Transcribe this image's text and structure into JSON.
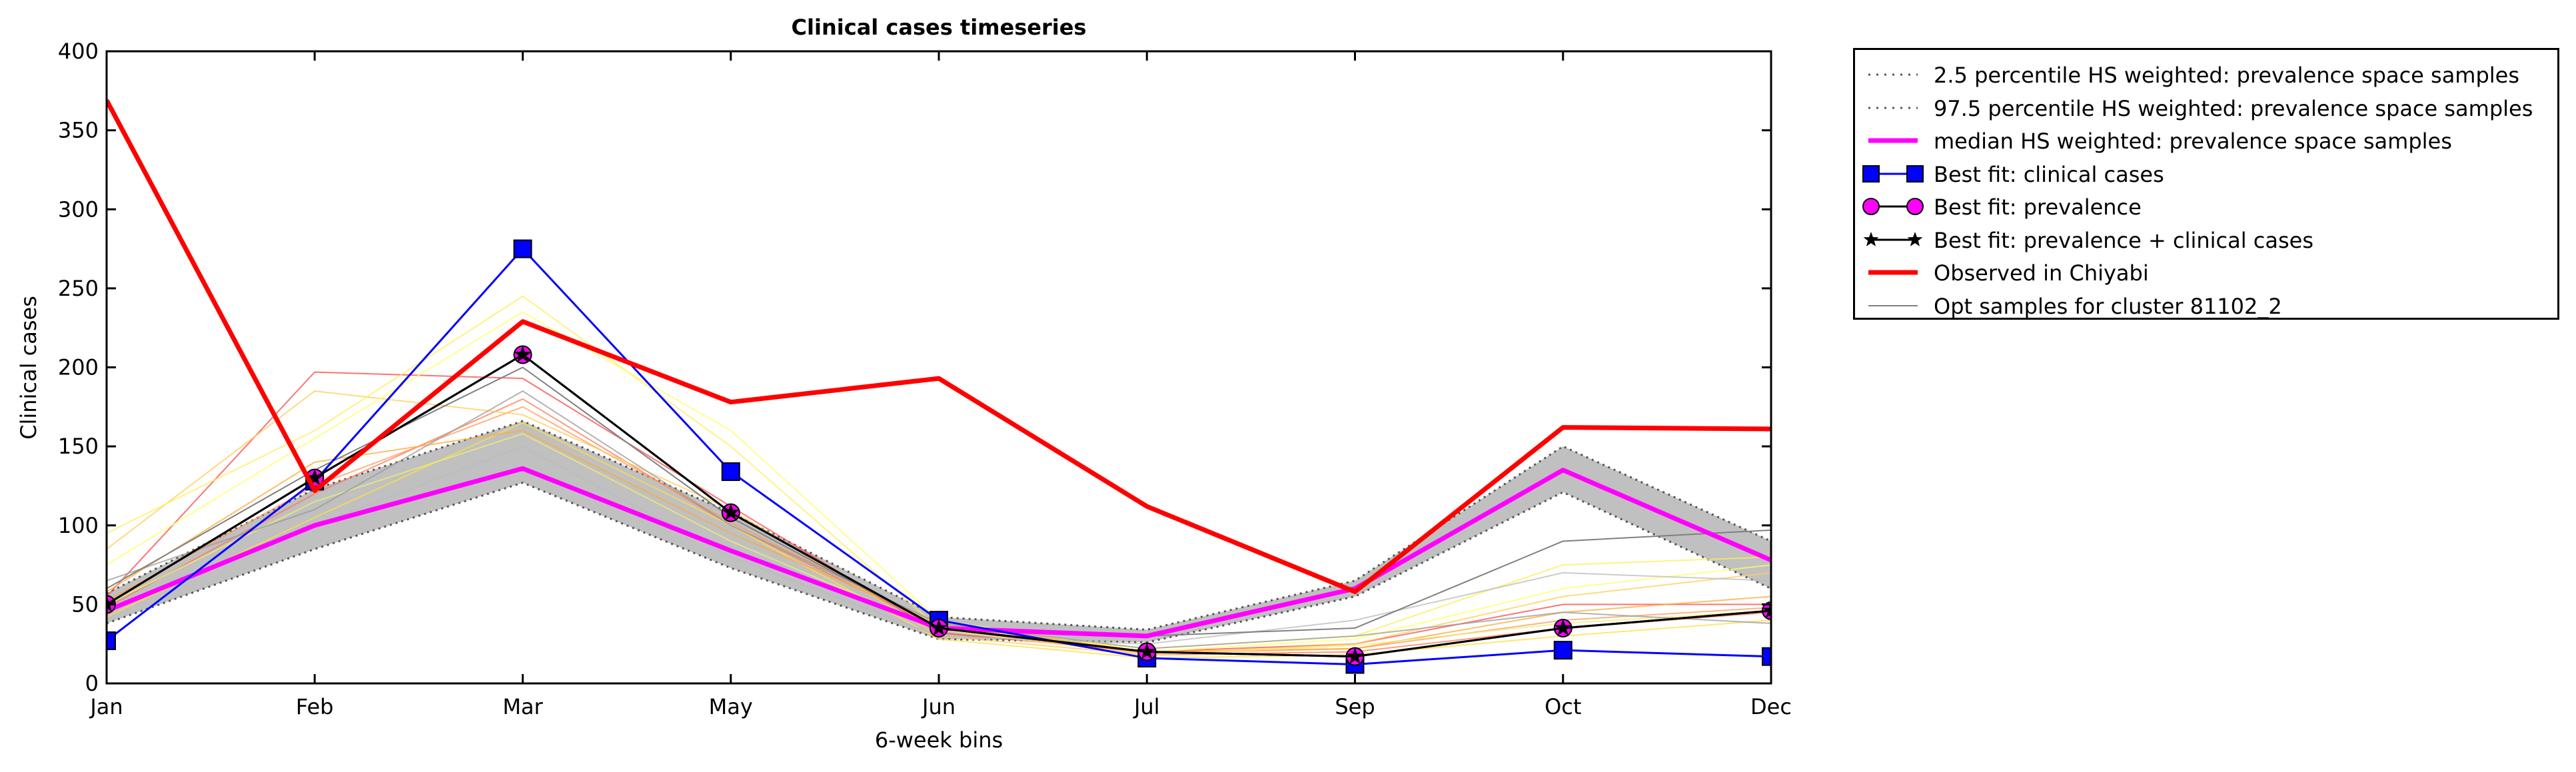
{
  "chart_data": {
    "type": "line",
    "title": "Clinical cases timeseries",
    "xlabel": "6-week bins",
    "ylabel": "Clinical cases",
    "categories": [
      "Jan",
      "Feb",
      "Mar",
      "May",
      "Jun",
      "Jul",
      "Sep",
      "Oct",
      "Dec"
    ],
    "ylim": [
      0,
      400
    ],
    "yticks": [
      0,
      50,
      100,
      150,
      200,
      250,
      300,
      350,
      400
    ],
    "grid": false,
    "legend_position": "outside right, top",
    "band": {
      "lower_name": "2.5 percentile HS weighted: prevalence space samples",
      "upper_name": "97.5 percentile HS weighted: prevalence space samples",
      "lower": [
        38,
        85,
        127,
        73,
        28,
        26,
        55,
        121,
        60
      ],
      "upper": [
        57,
        123,
        166,
        108,
        42,
        34,
        65,
        150,
        90
      ],
      "fill_color": "#c0c0c0",
      "line_color": "#555555"
    },
    "series": [
      {
        "name": "median HS weighted: prevalence space samples",
        "color": "#ff00ff",
        "width": 7,
        "marker": "none",
        "values": [
          46,
          100,
          136,
          84,
          35,
          30,
          60,
          135,
          78
        ]
      },
      {
        "name": "Best fit: clinical cases",
        "color": "#0000ff",
        "width": 3,
        "marker": "square",
        "values": [
          27,
          128,
          275,
          134,
          40,
          16,
          12,
          21,
          17
        ]
      },
      {
        "name": "Best fit: prevalence",
        "color": "#000000",
        "width": 3,
        "marker": "circle",
        "marker_fill": "#ff00ff",
        "values": [
          50,
          130,
          208,
          108,
          35,
          20,
          17,
          35,
          46
        ]
      },
      {
        "name": "Best fit: prevalence + clinical cases",
        "color": "#000000",
        "width": 3,
        "marker": "star",
        "values": [
          50,
          130,
          208,
          108,
          35,
          20,
          17,
          35,
          46
        ]
      },
      {
        "name": "Observed in Chiyabi",
        "color": "#ff0000",
        "width": 7,
        "marker": "none",
        "values": [
          369,
          122,
          229,
          178,
          193,
          112,
          58,
          162,
          161
        ]
      },
      {
        "name": "Opt samples for cluster 81102_2",
        "color": "#808080",
        "width": 2,
        "marker": "none",
        "values": [
          60,
          135,
          200,
          105,
          35,
          30,
          35,
          90,
          97
        ]
      }
    ],
    "sample_lines": [
      {
        "color": "#ff4444",
        "values": [
          55,
          197,
          193,
          112,
          32,
          20,
          25,
          50,
          50
        ]
      },
      {
        "color": "#ff7755",
        "values": [
          48,
          120,
          180,
          100,
          35,
          18,
          20,
          35,
          45
        ]
      },
      {
        "color": "#ff9955",
        "values": [
          52,
          125,
          175,
          102,
          36,
          19,
          22,
          40,
          48
        ]
      },
      {
        "color": "#ffcc55",
        "values": [
          85,
          185,
          170,
          110,
          30,
          18,
          25,
          55,
          70
        ]
      },
      {
        "color": "#ffee55",
        "values": [
          95,
          160,
          245,
          150,
          35,
          22,
          30,
          75,
          80
        ]
      },
      {
        "color": "#ffff66",
        "values": [
          75,
          155,
          235,
          160,
          40,
          20,
          28,
          60,
          75
        ]
      },
      {
        "color": "#ffdd44",
        "values": [
          42,
          105,
          165,
          100,
          28,
          16,
          18,
          30,
          40
        ]
      },
      {
        "color": "#ffaa33",
        "values": [
          58,
          140,
          160,
          95,
          38,
          20,
          22,
          45,
          55
        ]
      },
      {
        "color": "#eeee77",
        "values": [
          50,
          115,
          158,
          90,
          34,
          18,
          24,
          38,
          46
        ]
      },
      {
        "color": "#999999",
        "values": [
          65,
          110,
          185,
          100,
          38,
          22,
          30,
          45,
          38
        ]
      },
      {
        "color": "#bbbbbb",
        "values": [
          45,
          100,
          150,
          80,
          30,
          25,
          40,
          70,
          65
        ]
      }
    ],
    "legend": [
      {
        "label": "2.5 percentile HS weighted: prevalence space samples",
        "style": "dotted",
        "color": "#555555"
      },
      {
        "label": "97.5 percentile HS weighted: prevalence space samples",
        "style": "dotted",
        "color": "#555555"
      },
      {
        "label": "median HS weighted: prevalence space samples",
        "style": "solid",
        "color": "#ff00ff"
      },
      {
        "label": "Best fit: clinical cases",
        "style": "square",
        "color": "#0000ff"
      },
      {
        "label": "Best fit: prevalence",
        "style": "circle",
        "color": "#000000"
      },
      {
        "label": "Best fit: prevalence + clinical cases",
        "style": "star",
        "color": "#000000"
      },
      {
        "label": "Observed in Chiyabi",
        "style": "thick",
        "color": "#ff0000"
      },
      {
        "label": "Opt samples for cluster 81102_2",
        "style": "thin",
        "color": "#808080"
      }
    ]
  }
}
